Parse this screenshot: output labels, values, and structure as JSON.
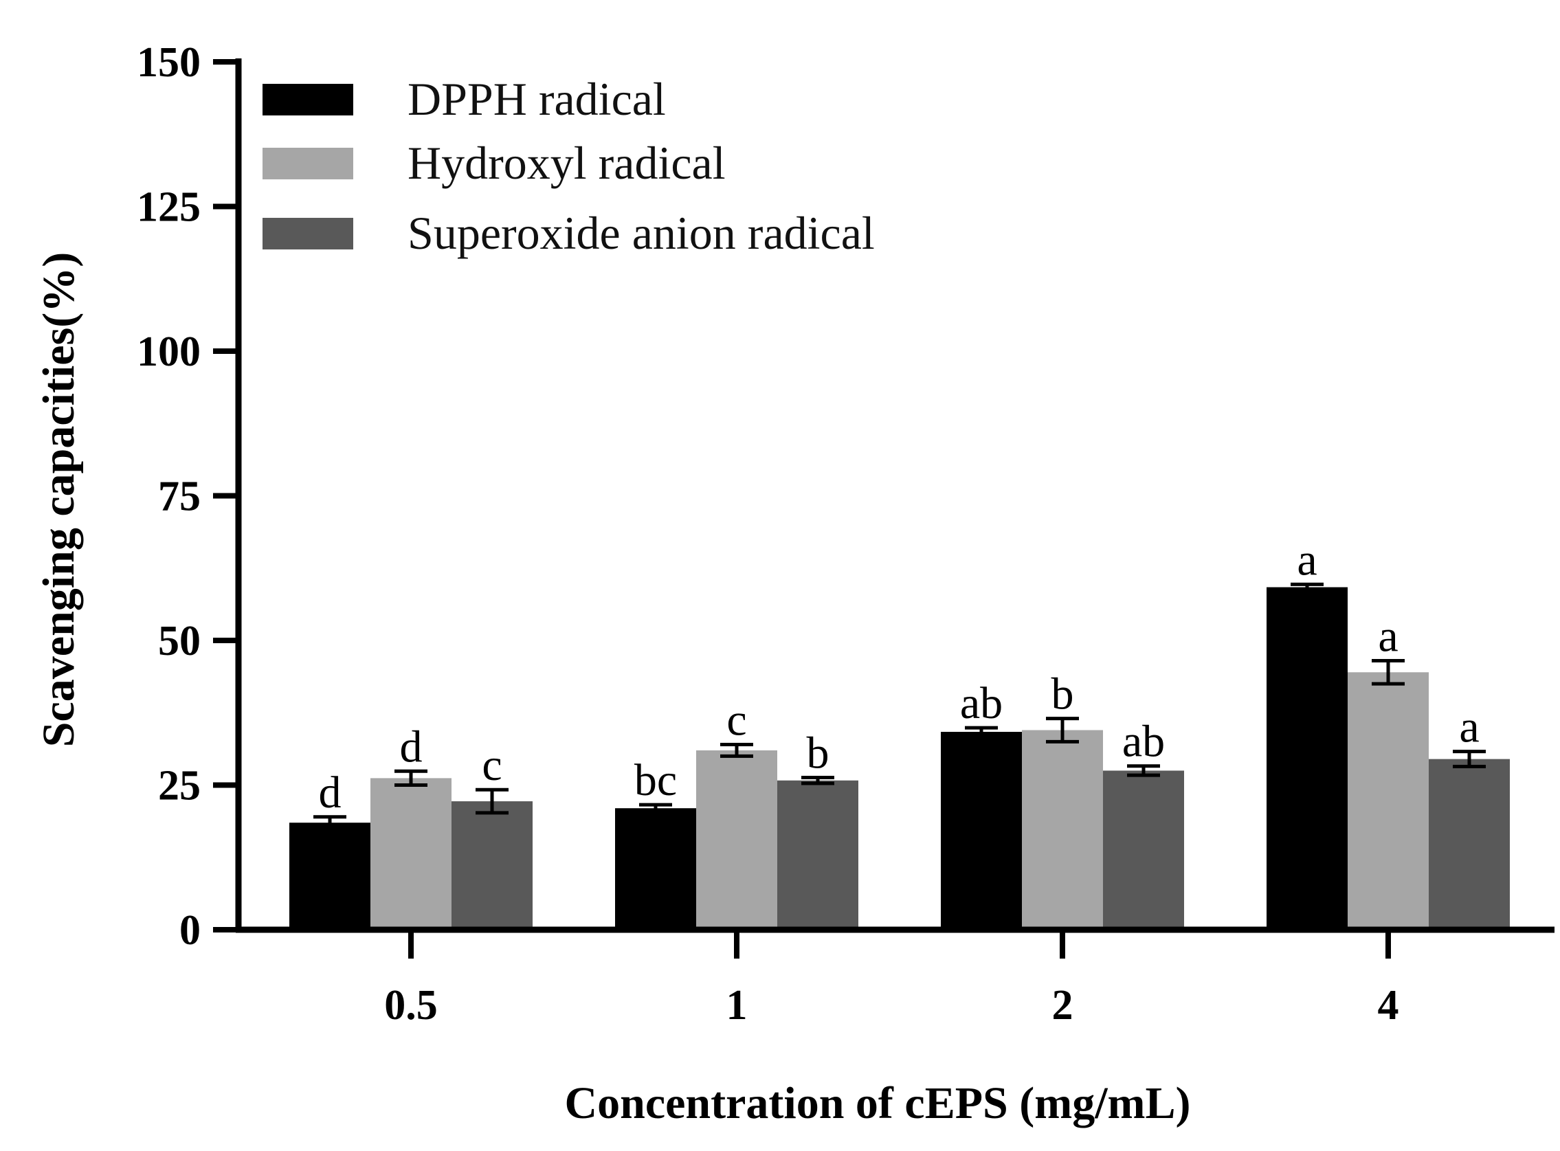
{
  "chart_data": {
    "type": "bar",
    "title": "",
    "xlabel": "Concentration of cEPS (mg/mL)",
    "ylabel": "Scavenging capacities(%)",
    "ylim": [
      0,
      150
    ],
    "yticks": [
      0,
      25,
      50,
      75,
      100,
      125,
      150
    ],
    "categories": [
      "0.5",
      "1",
      "2",
      "4"
    ],
    "legend_position": "top-left",
    "series": [
      {
        "name": "DPPH radical",
        "color": "#000000",
        "values": [
          18.5,
          21,
          34.2,
          59.2
        ],
        "errors": [
          1.0,
          0.6,
          0.7,
          0.5
        ],
        "labels": [
          "d",
          "bc",
          "ab",
          "a"
        ]
      },
      {
        "name": "Hydroxyl radical",
        "color": "#a6a6a6",
        "values": [
          26.2,
          31.0,
          34.5,
          44.5
        ],
        "errors": [
          1.2,
          1.0,
          2.0,
          2.0
        ],
        "labels": [
          "d",
          "c",
          "b",
          "a"
        ]
      },
      {
        "name": "Superoxide anion radical",
        "color": "#595959",
        "values": [
          22.2,
          25.8,
          27.5,
          29.5
        ],
        "errors": [
          2.0,
          0.5,
          0.8,
          1.3
        ],
        "labels": [
          "c",
          "b",
          "ab",
          "a"
        ]
      }
    ]
  }
}
